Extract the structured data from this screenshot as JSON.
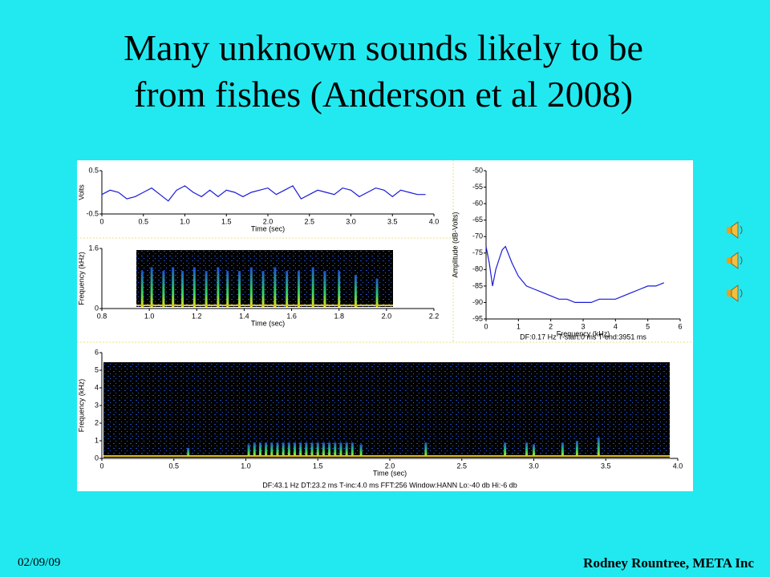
{
  "slide": {
    "title": "Many unknown sounds likely to be from fishes (Anderson et al 2008)",
    "date": "02/09/09",
    "author": "Rodney Rountree, META Inc"
  },
  "chart_data": [
    {
      "type": "line",
      "color": "#1a1ad8",
      "xlabel": "Time (sec)",
      "ylabel": "Volts",
      "x": [
        0,
        0.1,
        0.2,
        0.3,
        0.4,
        0.5,
        0.6,
        0.7,
        0.8,
        0.9,
        1.0,
        1.1,
        1.2,
        1.3,
        1.4,
        1.5,
        1.6,
        1.7,
        1.8,
        1.9,
        2.0,
        2.1,
        2.2,
        2.3,
        2.4,
        2.5,
        2.6,
        2.7,
        2.8,
        2.9,
        3.0,
        3.1,
        3.2,
        3.3,
        3.4,
        3.5,
        3.6,
        3.7,
        3.8,
        3.9
      ],
      "values": [
        -0.05,
        0.05,
        0.0,
        -0.15,
        -0.1,
        0,
        0.1,
        -0.05,
        -0.2,
        0.05,
        0.15,
        0.0,
        -0.1,
        0.05,
        -0.1,
        0.05,
        0.0,
        -0.1,
        0.0,
        0.05,
        0.1,
        -0.05,
        0.05,
        0.15,
        -0.15,
        -0.05,
        0.05,
        0.0,
        -0.05,
        0.1,
        0.05,
        -0.1,
        0.0,
        0.1,
        0.05,
        -0.1,
        0.05,
        0.0,
        -0.05,
        -0.05
      ],
      "xlim": [
        0,
        4
      ],
      "xticks": [
        0,
        0.5,
        {
          "value": 1,
          "label": "1.0"
        },
        1.5,
        {
          "value": 2,
          "label": "2.0"
        },
        2.5,
        {
          "value": 3,
          "label": "3.0"
        },
        3.5,
        {
          "value": 4,
          "label": "4.0"
        }
      ],
      "ylim": [
        -0.5,
        0.5
      ],
      "yticks": [
        -0.5,
        0.5
      ]
    },
    {
      "type": "spectrogram",
      "xlabel": "Time (sec)",
      "ylabel": "Frequency (kHz)",
      "x": [
        0.97,
        1.01,
        1.06,
        1.1,
        1.14,
        1.19,
        1.24,
        1.29,
        1.33,
        1.38,
        1.43,
        1.48,
        1.53,
        1.58,
        1.63,
        1.69,
        1.74,
        1.8,
        1.87,
        1.96
      ],
      "values": [
        1.0,
        1.1,
        1.0,
        1.1,
        1.0,
        1.1,
        1.0,
        1.1,
        1.0,
        1.0,
        1.1,
        1.0,
        1.1,
        1.0,
        1.0,
        1.1,
        1.0,
        1.0,
        0.9,
        0.8
      ],
      "xlim": [
        0.8,
        2.2
      ],
      "xticks": [
        0.8,
        {
          "value": 1,
          "label": "1.0"
        },
        1.2,
        1.4,
        1.6,
        1.8,
        {
          "value": 2,
          "label": "2.0"
        },
        2.2
      ],
      "ylim": [
        0,
        1.6
      ],
      "yticks": [
        0,
        1.6
      ]
    },
    {
      "type": "line",
      "color": "#1a1ad8",
      "xlabel": "Frequency (kHz)",
      "ylabel": "Amplitude (dB-Volts)",
      "caption": "DF:0.17 Hz    T-start:0 ms    T-end:3951 ms",
      "x": [
        0,
        0.1,
        0.2,
        0.3,
        0.4,
        0.5,
        0.6,
        0.8,
        1.0,
        1.25,
        1.5,
        1.75,
        2.0,
        2.25,
        2.5,
        2.75,
        3.0,
        3.25,
        3.5,
        3.75,
        4.0,
        4.25,
        4.5,
        4.75,
        5.0,
        5.25,
        5.5
      ],
      "values": [
        -73,
        -78,
        -85,
        -80,
        -77,
        -74,
        -73,
        -78,
        -82,
        -85,
        -86,
        -87,
        -88,
        -89,
        -89,
        -90,
        -90,
        -90,
        -89,
        -89,
        -89,
        -88,
        -87,
        -86,
        -85,
        -85,
        -84
      ],
      "xlim": [
        0,
        6
      ],
      "xticks": [
        0,
        1,
        2,
        3,
        4,
        5,
        6
      ],
      "ylim": [
        -95,
        -50
      ],
      "yticks": [
        -95,
        -90,
        -85,
        -80,
        -75,
        -70,
        -65,
        -60,
        -55,
        -50
      ]
    },
    {
      "type": "spectrogram",
      "xlabel": "Time (sec)",
      "ylabel": "Frequency (kHz)",
      "caption": "DF:43.1 Hz    DT:23.2 ms    T-inc:4.0 ms    FFT:256    Window:HANN    Lo:-40 db    Hi:-6 db",
      "x": [
        0.6,
        1.02,
        1.06,
        1.1,
        1.14,
        1.18,
        1.22,
        1.26,
        1.3,
        1.34,
        1.38,
        1.42,
        1.46,
        1.5,
        1.54,
        1.58,
        1.62,
        1.66,
        1.7,
        1.74,
        1.8,
        2.25,
        2.8,
        2.95,
        3.0,
        3.2,
        3.3,
        3.45
      ],
      "values": [
        0.6,
        0.8,
        0.9,
        0.9,
        0.9,
        0.9,
        0.9,
        0.9,
        0.9,
        0.9,
        0.9,
        0.9,
        0.9,
        0.9,
        0.9,
        0.9,
        0.9,
        0.9,
        0.9,
        0.9,
        0.8,
        0.9,
        0.9,
        0.9,
        0.8,
        0.9,
        1.0,
        1.2
      ],
      "xlim": [
        0,
        4
      ],
      "xticks": [
        0,
        0.5,
        {
          "value": 1,
          "label": "1.0"
        },
        1.5,
        {
          "value": 2,
          "label": "2.0"
        },
        2.5,
        {
          "value": 3,
          "label": "3.0"
        },
        3.5,
        {
          "value": 4,
          "label": "4.0"
        }
      ],
      "ylim": [
        0,
        6
      ],
      "yticks": [
        0,
        1,
        2,
        3,
        4,
        5,
        6
      ]
    }
  ]
}
